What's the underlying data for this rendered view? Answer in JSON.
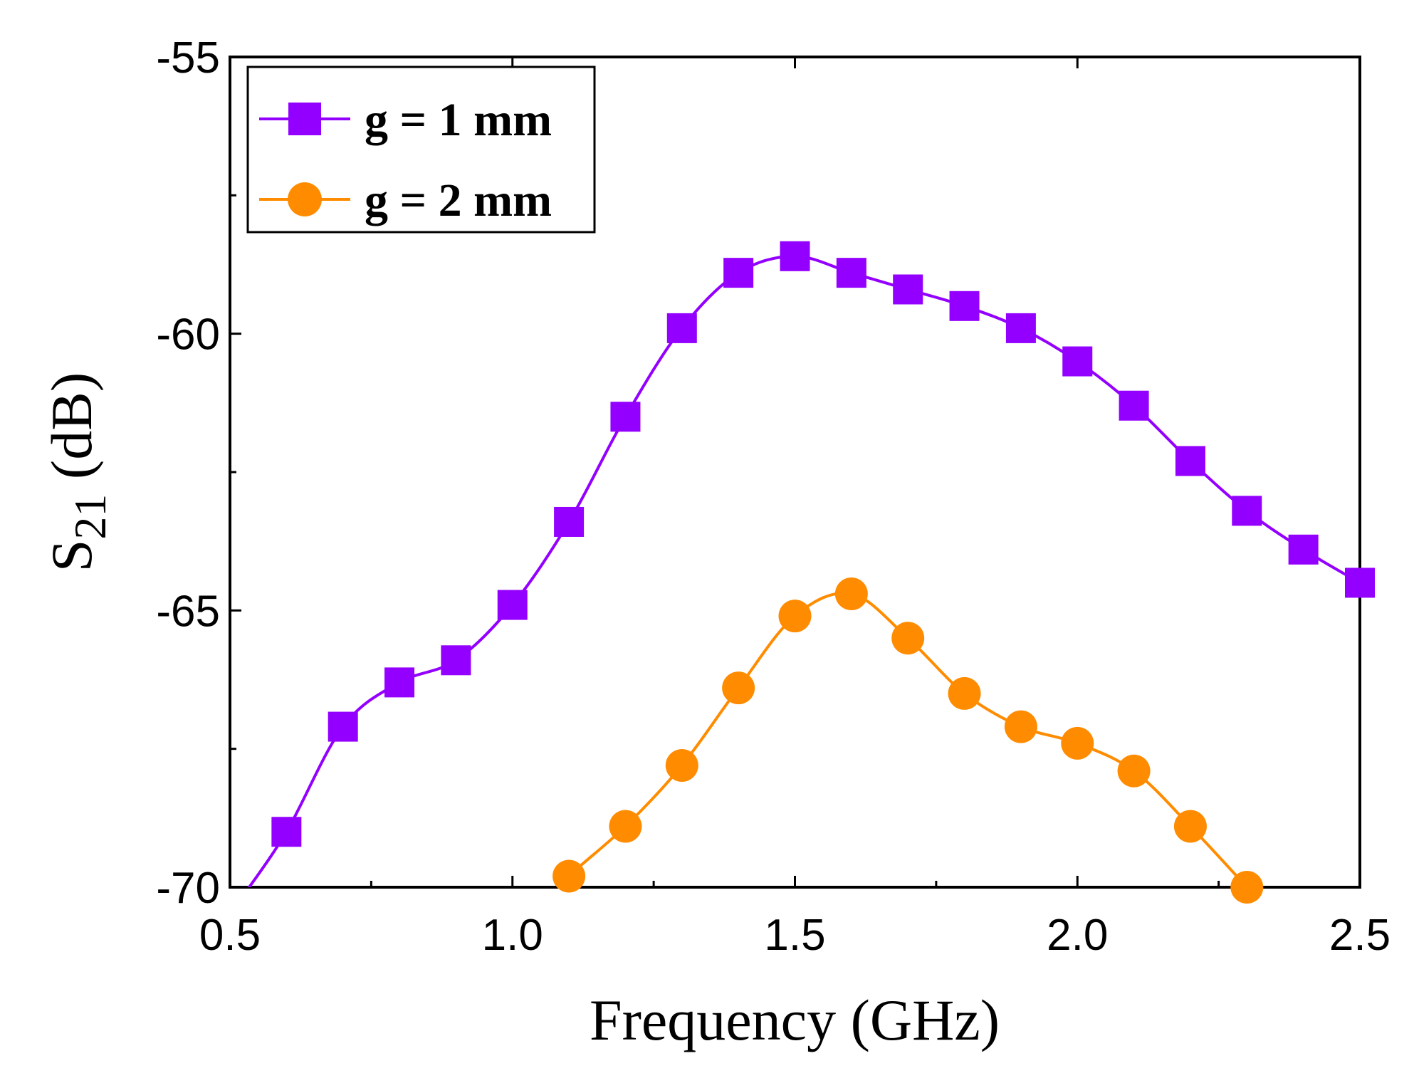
{
  "chart_data": {
    "type": "line",
    "title": "",
    "xlabel": "Frequency (GHz)",
    "ylabel_main": "S",
    "ylabel_sub": "21",
    "ylabel_unit": " (dB)",
    "xlim": [
      0.5,
      2.5
    ],
    "ylim": [
      -70,
      -55
    ],
    "xticks": [
      0.5,
      1.0,
      1.5,
      2.0,
      2.5
    ],
    "xtick_labels": [
      "0.5",
      "1.0",
      "1.5",
      "2.0",
      "2.5"
    ],
    "yticks": [
      -55,
      -60,
      -65,
      -70
    ],
    "ytick_labels": [
      "-55",
      "-60",
      "-65",
      "-70"
    ],
    "grid": false,
    "legend_position": "top-left",
    "series": [
      {
        "name": "g = 1 mm",
        "color": "#9400FF",
        "marker": "square",
        "x": [
          0.6,
          0.7,
          0.8,
          0.9,
          1.0,
          1.1,
          1.2,
          1.3,
          1.4,
          1.5,
          1.6,
          1.7,
          1.8,
          1.9,
          2.0,
          2.1,
          2.2,
          2.3,
          2.4,
          2.5
        ],
        "y": [
          -69.0,
          -67.1,
          -66.3,
          -65.9,
          -64.9,
          -63.4,
          -61.5,
          -59.9,
          -58.9,
          -58.6,
          -58.9,
          -59.2,
          -59.5,
          -59.9,
          -60.5,
          -61.3,
          -62.3,
          -63.2,
          -63.9,
          -64.5
        ]
      },
      {
        "name": "g = 2 mm",
        "color": "#FF8C00",
        "marker": "circle",
        "x": [
          1.1,
          1.2,
          1.3,
          1.4,
          1.5,
          1.6,
          1.7,
          1.8,
          1.9,
          2.0,
          2.1,
          2.2,
          2.3
        ],
        "y": [
          -69.8,
          -68.9,
          -67.8,
          -66.4,
          -65.1,
          -64.7,
          -65.5,
          -66.5,
          -67.1,
          -67.4,
          -67.9,
          -68.9,
          -70.0
        ]
      }
    ]
  }
}
